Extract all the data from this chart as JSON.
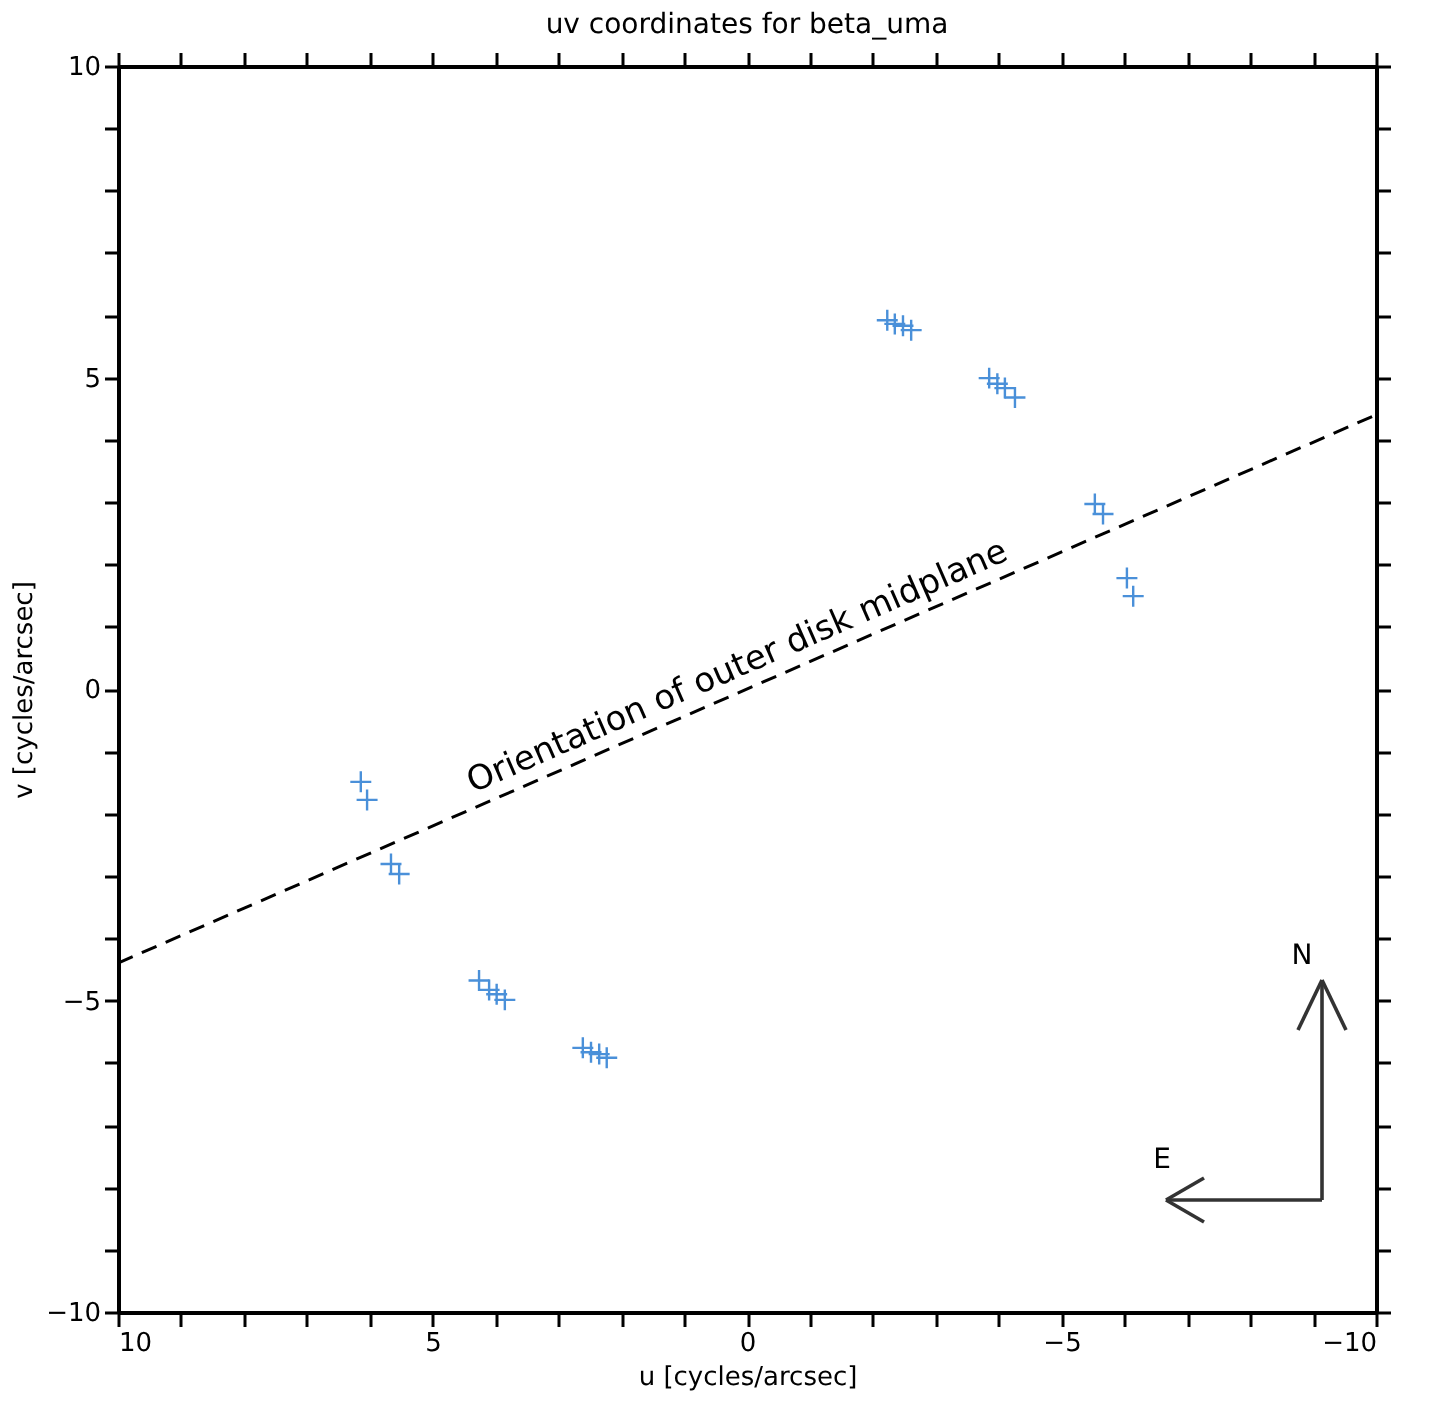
{
  "chart_data": {
    "type": "scatter",
    "title": "uv coordinates for beta_uma",
    "xlabel": "u [cycles/arcsec]",
    "ylabel": "v [cycles/arcsec]",
    "xlim": [
      10,
      -10
    ],
    "ylim": [
      -10,
      10
    ],
    "xticks": [
      10,
      {
        "value": 9,
        "label": null
      },
      {
        "value": 8,
        "label": null
      },
      {
        "value": 7,
        "label": null
      },
      {
        "value": 6,
        "label": null
      },
      5,
      {
        "value": 4,
        "label": null
      },
      {
        "value": 3,
        "label": null
      },
      {
        "value": 2,
        "label": null
      },
      {
        "value": 1,
        "label": null
      },
      0,
      {
        "value": -1,
        "label": null
      },
      {
        "value": -2,
        "label": null
      },
      {
        "value": -3,
        "label": null
      },
      {
        "value": -4,
        "label": null
      },
      -5,
      {
        "value": -6,
        "label": null
      },
      {
        "value": -7,
        "label": null
      },
      {
        "value": -8,
        "label": null
      },
      {
        "value": -9,
        "label": null
      },
      -10
    ],
    "yticks": [
      -10,
      {
        "value": -9,
        "label": null
      },
      {
        "value": -8,
        "label": null
      },
      {
        "value": -7,
        "label": null
      },
      {
        "value": -6,
        "label": null
      },
      -5,
      {
        "value": -4,
        "label": null
      },
      {
        "value": -3,
        "label": null
      },
      {
        "value": -2,
        "label": null
      },
      {
        "value": -1,
        "label": null
      },
      0,
      {
        "value": 1,
        "label": null
      },
      {
        "value": 2,
        "label": null
      },
      {
        "value": 3,
        "label": null
      },
      {
        "value": 4,
        "label": null
      },
      5,
      {
        "value": 6,
        "label": null
      },
      {
        "value": 7,
        "label": null
      },
      {
        "value": 8,
        "label": null
      },
      {
        "value": 9,
        "label": null
      },
      10
    ],
    "grid": false,
    "series": [
      {
        "type": "scatter",
        "color": "#4a90d9",
        "marker": "cross",
        "x": [
          -2.23,
          -2.35,
          -2.48,
          -2.61,
          -3.85,
          -3.98,
          -4.1,
          -4.26,
          -5.53,
          -5.66,
          -6.04,
          -6.14,
          2.23,
          2.35,
          2.48,
          2.61,
          3.85,
          3.98,
          4.1,
          4.26,
          5.53,
          5.66,
          6.04,
          6.14
        ],
        "values": [
          5.92,
          5.86,
          5.83,
          5.76,
          4.99,
          4.9,
          4.83,
          4.68,
          2.97,
          2.81,
          1.78,
          1.49,
          -5.92,
          -5.86,
          -5.83,
          -5.76,
          -4.99,
          -4.9,
          -4.83,
          -4.68,
          -2.97,
          -2.81,
          -1.78,
          -1.49
        ]
      },
      {
        "type": "line",
        "color": "#000000",
        "line_style": "dashed",
        "marker": "none",
        "x": [
          10,
          -10
        ],
        "values": [
          -4.4,
          4.4
        ]
      }
    ],
    "annotations": [
      "Orientation of outer disk midplane",
      "N",
      "E"
    ]
  }
}
